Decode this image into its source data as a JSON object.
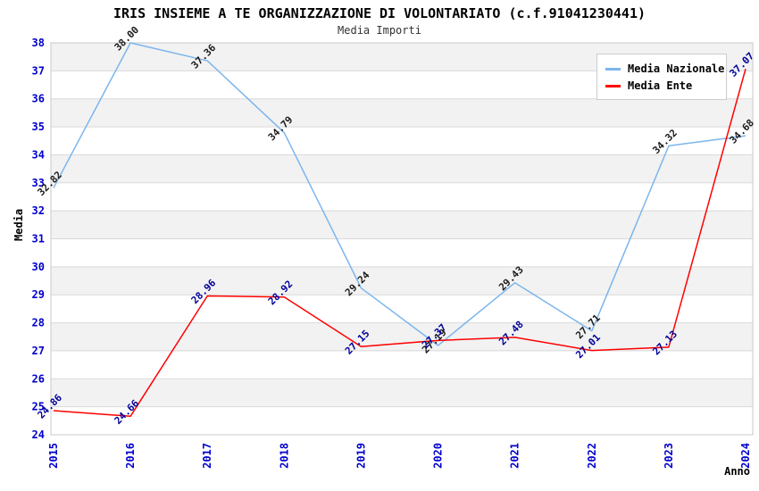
{
  "title": "IRIS INSIEME A TE ORGANIZZAZIONE DI VOLONTARIATO (c.f.91041230441)",
  "subtitle": "Media Importi",
  "chart_data": {
    "type": "line",
    "categories": [
      "2015",
      "2016",
      "2017",
      "2018",
      "2019",
      "2020",
      "2021",
      "2022",
      "2023",
      "2024"
    ],
    "series": [
      {
        "name": "Media Nazionale",
        "color": "#7cb5ec",
        "label_color": "#1a1a1a",
        "values": [
          32.82,
          38.0,
          37.36,
          34.79,
          29.24,
          27.19,
          29.43,
          27.71,
          34.32,
          34.68
        ]
      },
      {
        "name": "Media Ente",
        "color": "#ff0000",
        "label_color": "#000099",
        "values": [
          24.86,
          24.66,
          28.96,
          28.92,
          27.15,
          27.37,
          27.48,
          27.01,
          27.13,
          37.07
        ]
      }
    ],
    "xlabel": "Anno",
    "ylabel": "Media",
    "ylim": [
      24,
      38
    ],
    "ytick_step": 1,
    "grid": true,
    "legend_position": "top-right",
    "stripe_color": "#f2f2f2",
    "background_color": "#ffffff",
    "gridline_color": "#d9d9d9",
    "plot_border_color": "#c9c9c9",
    "axis_tick_label_color": "#0000cc"
  }
}
